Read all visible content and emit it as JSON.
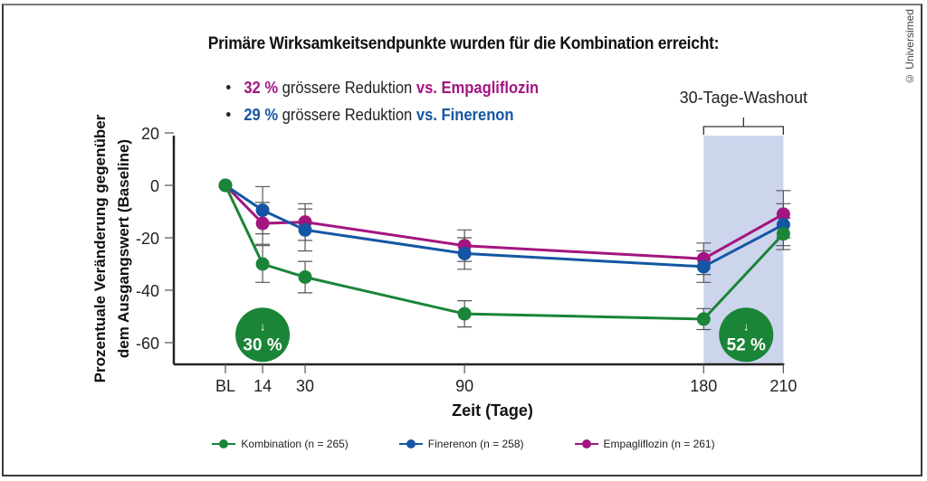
{
  "header": {
    "title": "Primäre Wirksamkeitsendpunkte wurden für die Kombination erreicht:",
    "bullets": [
      {
        "pct": "32 %",
        "text": " grössere Reduktion ",
        "vs": "vs. Empagliflozin",
        "color": "#a3157f"
      },
      {
        "pct": "29 %",
        "text": " grössere Reduktion ",
        "vs": "vs. Finerenon",
        "color": "#1456a4"
      }
    ]
  },
  "copyright": "© Universimed",
  "chart_data": {
    "type": "line",
    "title": "Primäre Wirksamkeitsendpunkte wurden für die Kombination erreicht:",
    "xlabel": "Zeit (Tage)",
    "ylabel": "Prozentuale Veränderung gegenüber dem Ausgangswert (Baseline)",
    "ylabel_lines": [
      "Prozentuale Veränderung gegenüber",
      "dem Ausgangswert (Baseline)"
    ],
    "x": [
      0,
      14,
      30,
      90,
      180,
      210
    ],
    "x_tick_labels": [
      "BL",
      "14",
      "30",
      "90",
      "180",
      "210"
    ],
    "y_ticks": [
      20,
      0,
      -20,
      -40,
      -60
    ],
    "ylim": [
      -68,
      20
    ],
    "xlim": [
      -8,
      210
    ],
    "grid": false,
    "legend_position": "bottom",
    "series": [
      {
        "name": "Kombination (n = 265)",
        "color": "#1a8437",
        "values": [
          0,
          -30,
          -35,
          -49,
          -51,
          -18.5
        ],
        "error": [
          0,
          7,
          6,
          5,
          4,
          6
        ]
      },
      {
        "name": "Finerenon (n = 258)",
        "color": "#1456a4",
        "values": [
          0,
          -9.5,
          -17,
          -26,
          -31,
          -15
        ],
        "error": [
          0,
          9,
          8,
          6,
          6,
          8
        ]
      },
      {
        "name": "Empagliflozin (n = 261)",
        "color": "#a3157f",
        "values": [
          0,
          -14.5,
          -14,
          -23,
          -28,
          -11
        ],
        "error": [
          0,
          8,
          7,
          6,
          6,
          9
        ]
      }
    ],
    "shaded_region": {
      "label": "30-Tage-Washout",
      "x_start": 180,
      "x_end": 210,
      "color": "#ccd5ec"
    },
    "annotations": [
      {
        "arrow": "↓",
        "text": "30 %",
        "x": 14,
        "y": -57,
        "color": "#1a8437"
      },
      {
        "arrow": "↓",
        "text": "52 %",
        "x": 196,
        "y": -57,
        "color": "#1a8437"
      }
    ]
  }
}
